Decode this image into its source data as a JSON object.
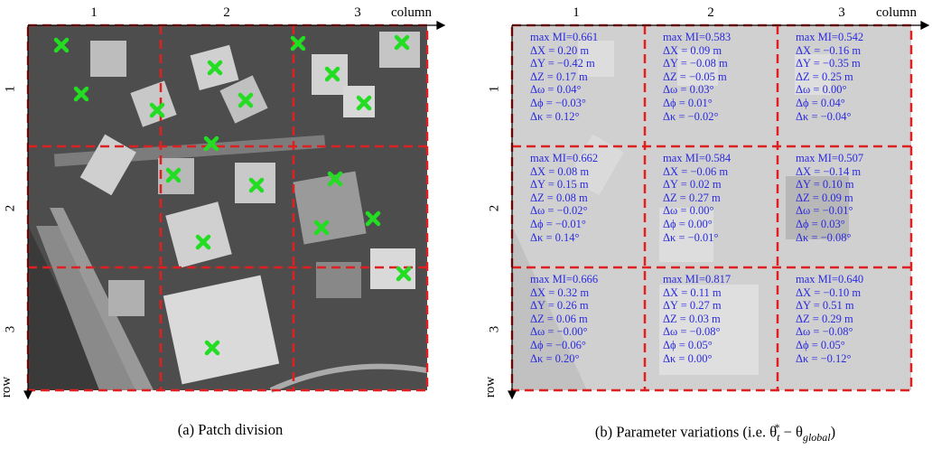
{
  "panel_a": {
    "column_numbers": [
      "1",
      "2",
      "3"
    ],
    "row_numbers": [
      "1",
      "2",
      "3"
    ],
    "column_label": "column",
    "row_label": "row",
    "caption": "(a) Patch division",
    "marker_color": "#22dd22",
    "grid_color": "#e02020"
  },
  "panel_b": {
    "column_numbers": [
      "1",
      "2",
      "3"
    ],
    "row_numbers": [
      "1",
      "2",
      "3"
    ],
    "column_label": "column",
    "row_label": "row",
    "caption_prefix": "(b) Parameter variations (i.e. θ",
    "caption_sub": "t",
    "caption_sup": "*",
    "caption_mid": " − θ",
    "caption_sub2": "global",
    "caption_suffix": ")",
    "text_color": "#2a2ae0",
    "cells": [
      [
        "max MI=0.661",
        "ΔX = 0.20 m",
        "ΔY = −0.42 m",
        "ΔZ = 0.17 m",
        "Δω = 0.04°",
        "Δϕ = −0.03°",
        "Δκ = 0.12°"
      ],
      [
        "max MI=0.583",
        "ΔX = 0.09 m",
        "ΔY = −0.08 m",
        "ΔZ = −0.05 m",
        "Δω = 0.03°",
        "Δϕ = 0.01°",
        "Δκ = −0.02°"
      ],
      [
        "max MI=0.542",
        "ΔX = −0.16 m",
        "ΔY = −0.35 m",
        "ΔZ = 0.25 m",
        "Δω = 0.00°",
        "Δϕ = 0.04°",
        "Δκ = −0.04°"
      ],
      [
        "max MI=0.662",
        "ΔX = 0.08 m",
        "ΔY = 0.15 m",
        "ΔZ = 0.08 m",
        "Δω = −0.02°",
        "Δϕ = −0.01°",
        "Δκ = 0.14°"
      ],
      [
        "max MI=0.584",
        "ΔX = −0.06 m",
        "ΔY = 0.02 m",
        "ΔZ = 0.27 m",
        "Δω = 0.00°",
        "Δϕ = 0.00°",
        "Δκ = −0.01°"
      ],
      [
        "max MI=0.507",
        "ΔX = −0.14 m",
        "ΔY = 0.10 m",
        "ΔZ = 0.09 m",
        "Δω = −0.01°",
        "Δϕ = 0.03°",
        "Δκ = −0.08°"
      ],
      [
        "max MI=0.666",
        "ΔX = 0.32 m",
        "ΔY = 0.26 m",
        "ΔZ = 0.06 m",
        "Δω = −0.00°",
        "Δϕ = −0.06°",
        "Δκ = 0.20°"
      ],
      [
        "max MI=0.817",
        "ΔX = 0.11 m",
        "ΔY = 0.27 m",
        "ΔZ = 0.03 m",
        "Δω = −0.08°",
        "Δϕ = 0.05°",
        "Δκ = 0.00°"
      ],
      [
        "max MI=0.640",
        "ΔX = −0.10 m",
        "ΔY = 0.51 m",
        "ΔZ = 0.29 m",
        "Δω = −0.08°",
        "Δϕ = 0.05°",
        "Δκ = −0.12°"
      ]
    ]
  }
}
